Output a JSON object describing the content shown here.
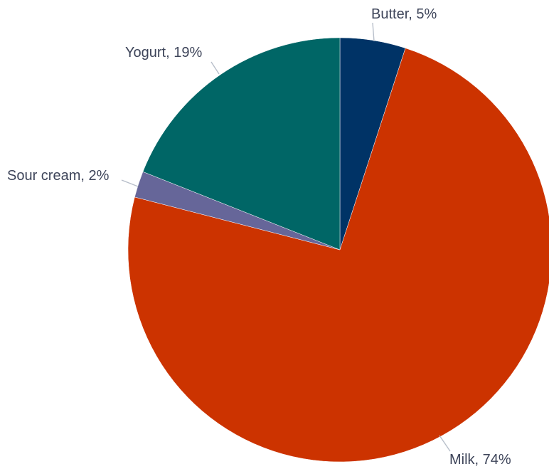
{
  "chart_data": {
    "type": "pie",
    "start_angle_deg": 0,
    "direction": "clockwise",
    "slices": [
      {
        "label": "Butter",
        "value": 5,
        "display": "Butter, 5%",
        "color": "#003366"
      },
      {
        "label": "Milk",
        "value": 74,
        "display": "Milk, 74%",
        "color": "#cc3300"
      },
      {
        "label": "Sour cream",
        "value": 2,
        "display": "Sour cream, 2%",
        "color": "#666699"
      },
      {
        "label": "Yogurt",
        "value": 19,
        "display": "Yogurt, 19%",
        "color": "#006666"
      }
    ]
  }
}
